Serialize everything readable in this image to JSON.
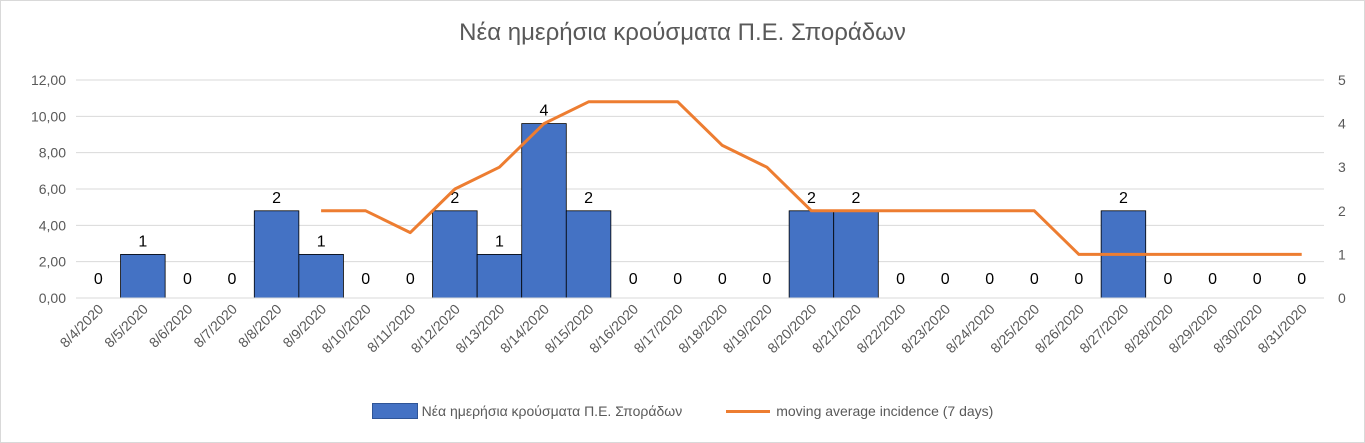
{
  "chart_data": {
    "type": "bar+line",
    "title": "Νέα ημερήσια κρούσματα Π.Ε. Σποράδων",
    "categories": [
      "8/4/2020",
      "8/5/2020",
      "8/6/2020",
      "8/7/2020",
      "8/8/2020",
      "8/9/2020",
      "8/10/2020",
      "8/11/2020",
      "8/12/2020",
      "8/13/2020",
      "8/14/2020",
      "8/15/2020",
      "8/16/2020",
      "8/17/2020",
      "8/18/2020",
      "8/19/2020",
      "8/20/2020",
      "8/21/2020",
      "8/22/2020",
      "8/23/2020",
      "8/24/2020",
      "8/25/2020",
      "8/26/2020",
      "8/27/2020",
      "8/28/2020",
      "8/29/2020",
      "8/30/2020",
      "8/31/2020"
    ],
    "series": [
      {
        "name": "Νέα ημερήσια κρούσματα Π.Ε. Σποράδων",
        "type": "bar",
        "axis": "right",
        "color": "#4472c4",
        "values": [
          0,
          1,
          0,
          0,
          2,
          1,
          0,
          0,
          2,
          1,
          4,
          2,
          0,
          0,
          0,
          0,
          2,
          2,
          0,
          0,
          0,
          0,
          0,
          2,
          0,
          0,
          0,
          0
        ],
        "data_labels": [
          "0",
          "1",
          "0",
          "0",
          "2",
          "1",
          "0",
          "0",
          "2",
          "1",
          "4",
          "2",
          "0",
          "0",
          "0",
          "0",
          "2",
          "2",
          "0",
          "0",
          "0",
          "0",
          "0",
          "2",
          "0",
          "0",
          "0",
          "0"
        ]
      },
      {
        "name": "moving average incidence (7 days)",
        "type": "line",
        "axis": "right",
        "color": "#ed7d31",
        "values": [
          null,
          null,
          null,
          null,
          null,
          2,
          2,
          1.5,
          2.5,
          3,
          4,
          4.5,
          4.5,
          4.5,
          3.5,
          3,
          2,
          2,
          2,
          2,
          2,
          2,
          1,
          1,
          1,
          1,
          1,
          1
        ]
      }
    ],
    "y_left": {
      "ylim": [
        0,
        12
      ],
      "ticks": [
        "0,00",
        "2,00",
        "4,00",
        "6,00",
        "8,00",
        "10,00",
        "12,00"
      ]
    },
    "y_right": {
      "ylim": [
        0,
        5
      ],
      "ticks": [
        "0",
        "1",
        "2",
        "3",
        "4",
        "5"
      ]
    },
    "legend_position": "bottom",
    "grid": true
  }
}
